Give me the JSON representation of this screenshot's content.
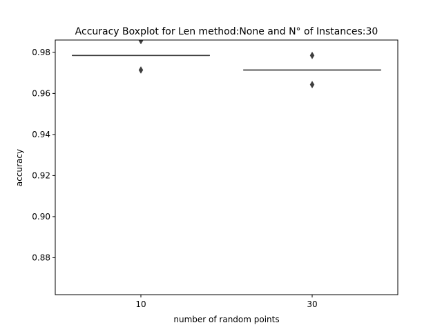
{
  "chart_data": {
    "type": "boxplot",
    "title": "Accuracy Boxplot for Len method:None and N° of Instances:30",
    "xlabel": "number of random points",
    "ylabel": "accuracy",
    "categories": [
      "10",
      "30"
    ],
    "ylim": [
      0.862,
      0.986
    ],
    "yticks": [
      0.88,
      0.9,
      0.92,
      0.94,
      0.96,
      0.98
    ],
    "ytick_labels": [
      "0.88",
      "0.90",
      "0.92",
      "0.94",
      "0.96",
      "0.98"
    ],
    "grid": false,
    "legend": "none",
    "boxes": [
      {
        "category": "10",
        "median": 0.9785,
        "q1": 0.9785,
        "q3": 0.9785,
        "whisker_low": 0.9785,
        "whisker_high": 0.9785,
        "outliers": [
          0.9857,
          0.9714
        ]
      },
      {
        "category": "30",
        "median": 0.9714,
        "q1": 0.9714,
        "q3": 0.9714,
        "whisker_low": 0.9714,
        "whisker_high": 0.9714,
        "outliers": [
          0.9785,
          0.9643
        ]
      }
    ],
    "colors": {
      "box": "#3f3f3f",
      "axes": "#000000"
    }
  }
}
